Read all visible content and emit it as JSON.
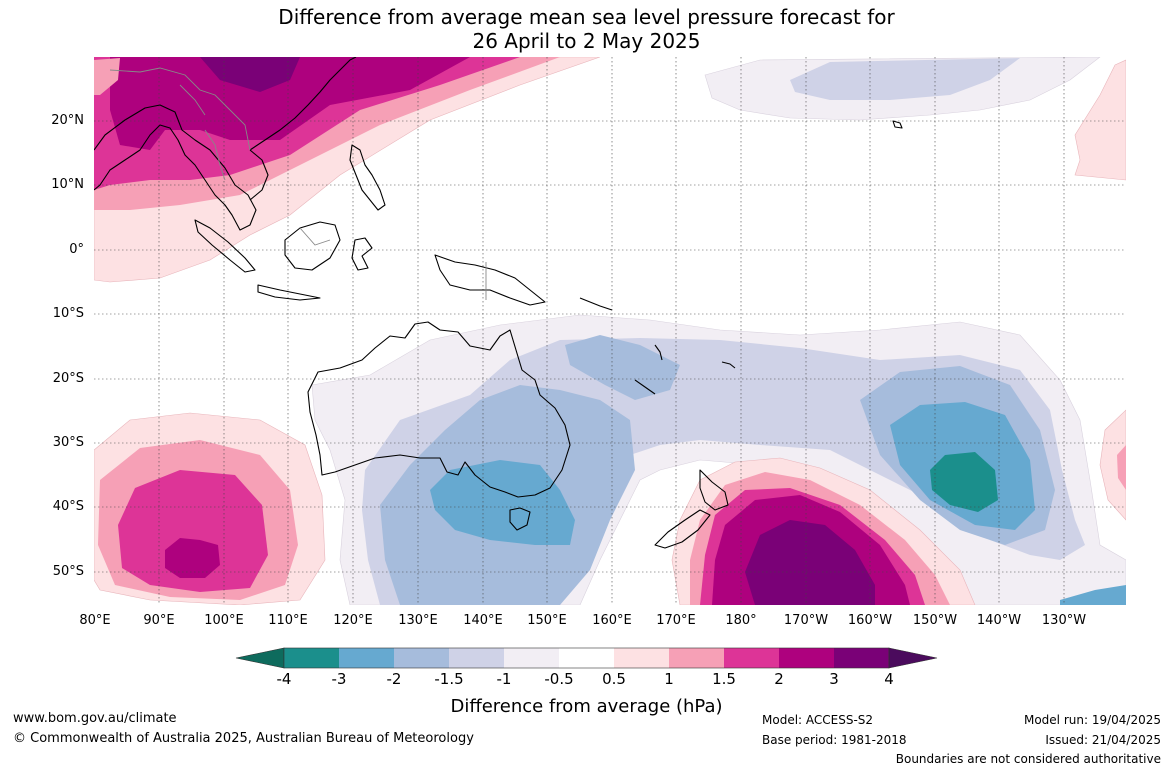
{
  "title": {
    "line1": "Difference from average mean sea level pressure forecast for",
    "line2": "26 April to 2 May 2025"
  },
  "map": {
    "region": "Australia, Indian Ocean and South-West Pacific",
    "lon_range": [
      80,
      238
    ],
    "lat_range": [
      -55,
      30
    ],
    "gridlines": true,
    "lat_labels": [
      "20°N",
      "10°N",
      "0°",
      "10°S",
      "20°S",
      "30°S",
      "40°S",
      "50°S"
    ],
    "lon_labels": [
      "80°E",
      "90°E",
      "100°E",
      "110°E",
      "120°E",
      "130°E",
      "140°E",
      "150°E",
      "160°E",
      "170°E",
      "180°",
      "170°W",
      "160°W",
      "150°W",
      "140°W",
      "130°W"
    ],
    "anomaly_regions": [
      {
        "name": "South-East Asia high",
        "lon": [
          80,
          150
        ],
        "lat": [
          5,
          30
        ],
        "peak_hPa": 3.5,
        "sign": "positive"
      },
      {
        "name": "Indian Ocean high",
        "lon": [
          83,
          118
        ],
        "lat": [
          -55,
          -26
        ],
        "peak_hPa": 2.5,
        "sign": "positive"
      },
      {
        "name": "South of New Zealand high",
        "lon": [
          165,
          198
        ],
        "lat": [
          -55,
          -35
        ],
        "peak_hPa": 3.5,
        "sign": "positive"
      },
      {
        "name": "South-east Australia low",
        "lon": [
          125,
          165
        ],
        "lat": [
          -55,
          -15
        ],
        "peak_hPa": -2.5,
        "sign": "negative"
      },
      {
        "name": "Central South Pacific low",
        "lon": [
          180,
          232
        ],
        "lat": [
          -55,
          -15
        ],
        "peak_hPa": -4,
        "sign": "negative"
      },
      {
        "name": "North Pacific low",
        "lon": [
          178,
          225
        ],
        "lat": [
          20,
          30
        ],
        "peak_hPa": -1.5,
        "sign": "negative"
      }
    ]
  },
  "colorbar": {
    "label": "Difference from average (hPa)",
    "ticks": [
      "-4",
      "-3",
      "-2",
      "-1.5",
      "-1",
      "-0.5",
      "0.5",
      "1",
      "1.5",
      "2",
      "3",
      "4"
    ],
    "under_color": "#0e6b5d",
    "over_color": "#4b0b5d",
    "colors": [
      "#1b8f8c",
      "#66a9d0",
      "#a6bcdc",
      "#cfd2e7",
      "#f2eef4",
      "#ffffff",
      "#fde1e3",
      "#f6a0b6",
      "#dd3497",
      "#ae017e",
      "#7a0177"
    ]
  },
  "footer": {
    "website": "www.bom.gov.au/climate",
    "copyright": "© Commonwealth of Australia 2025, Australian Bureau of Meteorology",
    "model": "Model: ACCESS-S2",
    "base_period": "Base period: 1981-2018",
    "model_run": "Model run: 19/04/2025",
    "issued": "Issued: 21/04/2025",
    "disclaimer": "Boundaries are not considered authoritative"
  }
}
